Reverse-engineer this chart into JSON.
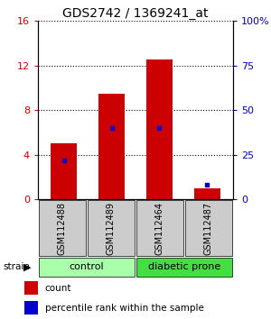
{
  "title": "GDS2742 / 1369241_at",
  "samples": [
    "GSM112488",
    "GSM112489",
    "GSM112464",
    "GSM112487"
  ],
  "counts": [
    5.0,
    9.5,
    12.5,
    1.0
  ],
  "percentiles": [
    22.0,
    40.0,
    40.0,
    8.0
  ],
  "groups": [
    {
      "label": "control",
      "samples": [
        0,
        1
      ],
      "color": "#aaffaa"
    },
    {
      "label": "diabetic prone",
      "samples": [
        2,
        3
      ],
      "color": "#44dd44"
    }
  ],
  "ylim_left": [
    0,
    16
  ],
  "ylim_right": [
    0,
    100
  ],
  "yticks_left": [
    0,
    4,
    8,
    12,
    16
  ],
  "ytick_labels_left": [
    "0",
    "4",
    "8",
    "12",
    "16"
  ],
  "yticks_right": [
    0,
    25,
    50,
    75,
    100
  ],
  "ytick_labels_right": [
    "0",
    "25",
    "50",
    "75",
    "100%"
  ],
  "bar_color": "#cc0000",
  "percentile_color": "#0000cc",
  "bar_width": 0.55,
  "legend_items": [
    {
      "label": "count",
      "color": "#cc0000"
    },
    {
      "label": "percentile rank within the sample",
      "color": "#0000cc"
    }
  ],
  "group_label": "strain",
  "sample_box_color": "#cccccc",
  "title_fontsize": 10,
  "tick_fontsize": 8,
  "label_fontsize": 7,
  "group_fontsize": 8,
  "legend_fontsize": 7.5,
  "figsize": [
    3.0,
    3.54
  ],
  "dpi": 100
}
